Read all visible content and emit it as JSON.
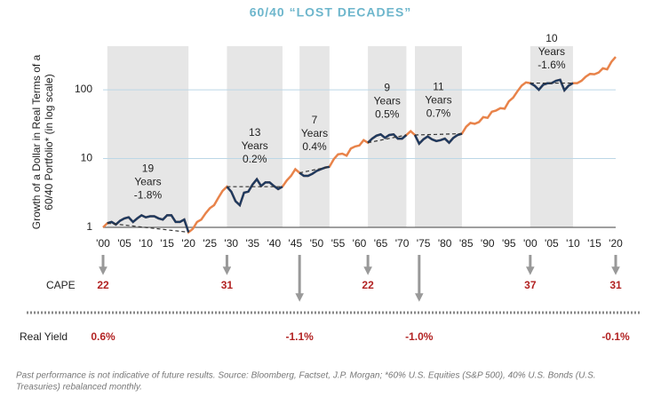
{
  "chart_data": {
    "type": "line",
    "title": "60/40 “LOST DECADES”",
    "y_label": [
      "Growth of a Dollar in Real Terms of a",
      "60/40 Portfolio* (in log scale)"
    ],
    "log_scale": true,
    "grid": true,
    "color": "#e8834a",
    "highlight_color": "#1f3a5f",
    "xlim": [
      1900,
      2020
    ],
    "ylim": [
      0.8,
      430
    ],
    "yticks": [
      1,
      10,
      100
    ],
    "xticks": [
      {
        "value": 1900,
        "label": "'00"
      },
      {
        "value": 1905,
        "label": "'05"
      },
      {
        "value": 1910,
        "label": "'10"
      },
      {
        "value": 1915,
        "label": "'15"
      },
      {
        "value": 1920,
        "label": "'20"
      },
      {
        "value": 1925,
        "label": "'25"
      },
      {
        "value": 1930,
        "label": "'30"
      },
      {
        "value": 1935,
        "label": "'35"
      },
      {
        "value": 1940,
        "label": "'40"
      },
      {
        "value": 1945,
        "label": "'45"
      },
      {
        "value": 1950,
        "label": "'50"
      },
      {
        "value": 1955,
        "label": "'55"
      },
      {
        "value": 1960,
        "label": "'60"
      },
      {
        "value": 1965,
        "label": "'65"
      },
      {
        "value": 1970,
        "label": "'70"
      },
      {
        "value": 1975,
        "label": "'75"
      },
      {
        "value": 1980,
        "label": "'80"
      },
      {
        "value": 1985,
        "label": "'85"
      },
      {
        "value": 1990,
        "label": "'90"
      },
      {
        "value": 1995,
        "label": "'95"
      },
      {
        "value": 2000,
        "label": "'00"
      },
      {
        "value": 2005,
        "label": "'05"
      },
      {
        "value": 2010,
        "label": "'10"
      },
      {
        "value": 2015,
        "label": "'15"
      },
      {
        "value": 2020,
        "label": "'20"
      }
    ],
    "x": [
      1900,
      1901,
      1902,
      1903,
      1904,
      1905,
      1906,
      1907,
      1908,
      1909,
      1910,
      1911,
      1912,
      1913,
      1914,
      1915,
      1916,
      1917,
      1918,
      1919,
      1920,
      1921,
      1922,
      1923,
      1924,
      1925,
      1926,
      1927,
      1928,
      1929,
      1930,
      1931,
      1932,
      1933,
      1934,
      1935,
      1936,
      1937,
      1938,
      1939,
      1940,
      1941,
      1942,
      1943,
      1944,
      1945,
      1946,
      1947,
      1948,
      1949,
      1950,
      1951,
      1952,
      1953,
      1954,
      1955,
      1956,
      1957,
      1958,
      1959,
      1960,
      1961,
      1962,
      1963,
      1964,
      1965,
      1966,
      1967,
      1968,
      1969,
      1970,
      1971,
      1972,
      1973,
      1974,
      1975,
      1976,
      1977,
      1978,
      1979,
      1980,
      1981,
      1982,
      1983,
      1984,
      1985,
      1986,
      1987,
      1988,
      1989,
      1990,
      1991,
      1992,
      1993,
      1994,
      1995,
      1996,
      1997,
      1998,
      1999,
      2000,
      2001,
      2002,
      2003,
      2004,
      2005,
      2006,
      2007,
      2008,
      2009,
      2010,
      2011,
      2012,
      2013,
      2014,
      2015,
      2016,
      2017,
      2018,
      2019,
      2020
    ],
    "values": [
      1.0,
      1.15,
      1.2,
      1.1,
      1.25,
      1.35,
      1.4,
      1.2,
      1.35,
      1.5,
      1.4,
      1.45,
      1.45,
      1.35,
      1.3,
      1.5,
      1.5,
      1.2,
      1.2,
      1.3,
      0.85,
      0.95,
      1.2,
      1.3,
      1.6,
      1.9,
      2.1,
      2.7,
      3.4,
      3.9,
      3.3,
      2.4,
      2.1,
      3.2,
      3.3,
      4.2,
      5.0,
      4.0,
      4.5,
      4.5,
      4.0,
      3.6,
      3.9,
      4.8,
      5.6,
      7.0,
      6.2,
      5.6,
      5.6,
      6.0,
      6.6,
      7.0,
      7.4,
      7.6,
      9.8,
      11.5,
      11.8,
      11,
      14,
      15,
      15.5,
      18.5,
      17,
      19.5,
      21.5,
      22.5,
      20,
      22,
      22.5,
      19.5,
      19.5,
      22,
      25,
      22,
      16.5,
      19,
      21,
      19,
      18,
      18.5,
      19.5,
      17,
      20,
      22,
      23,
      29,
      33,
      32,
      34,
      40,
      39,
      48,
      50,
      54,
      53,
      68,
      77,
      95,
      115,
      128,
      125,
      115,
      100,
      118,
      124,
      125,
      135,
      140,
      98,
      115,
      125,
      125,
      135,
      155,
      170,
      168,
      178,
      205,
      198,
      255,
      300
    ],
    "periods": [
      {
        "start": 1901,
        "end": 1920,
        "label": [
          "19",
          "Years",
          "-1.8%"
        ]
      },
      {
        "start": 1929,
        "end": 1942,
        "label": [
          "13",
          "Years",
          "0.2%"
        ]
      },
      {
        "start": 1946,
        "end": 1953,
        "label": [
          "7",
          "Years",
          "0.4%"
        ]
      },
      {
        "start": 1962,
        "end": 1971,
        "label": [
          "9",
          "Years",
          "0.5%"
        ]
      },
      {
        "start": 1973,
        "end": 1984,
        "label": [
          "11",
          "Years",
          "0.7%"
        ]
      },
      {
        "start": 2000,
        "end": 2010,
        "label": [
          "10",
          "Years",
          "-1.6%"
        ]
      }
    ],
    "cape": {
      "label": "CAPE",
      "years": [
        1900,
        1929,
        1962,
        2000,
        2020
      ],
      "values": [
        22,
        31,
        22,
        37,
        31
      ]
    },
    "real_yield": {
      "label": "Real Yield",
      "years": [
        1900,
        1946,
        1974,
        2020
      ],
      "values": [
        0.6,
        -1.1,
        -1.0,
        -0.1
      ],
      "value_labels": [
        "0.6%",
        "-1.1%",
        "-1.0%",
        "-0.1%"
      ]
    },
    "footnote": [
      "Past performance is not indicative of future results. Source: Bloomberg, Factset, J.P. Morgan; *60% U.S. Equities (S&P 500), 40% U.S. Bonds (U.S.",
      "Treasuries) rebalanced monthly."
    ]
  }
}
